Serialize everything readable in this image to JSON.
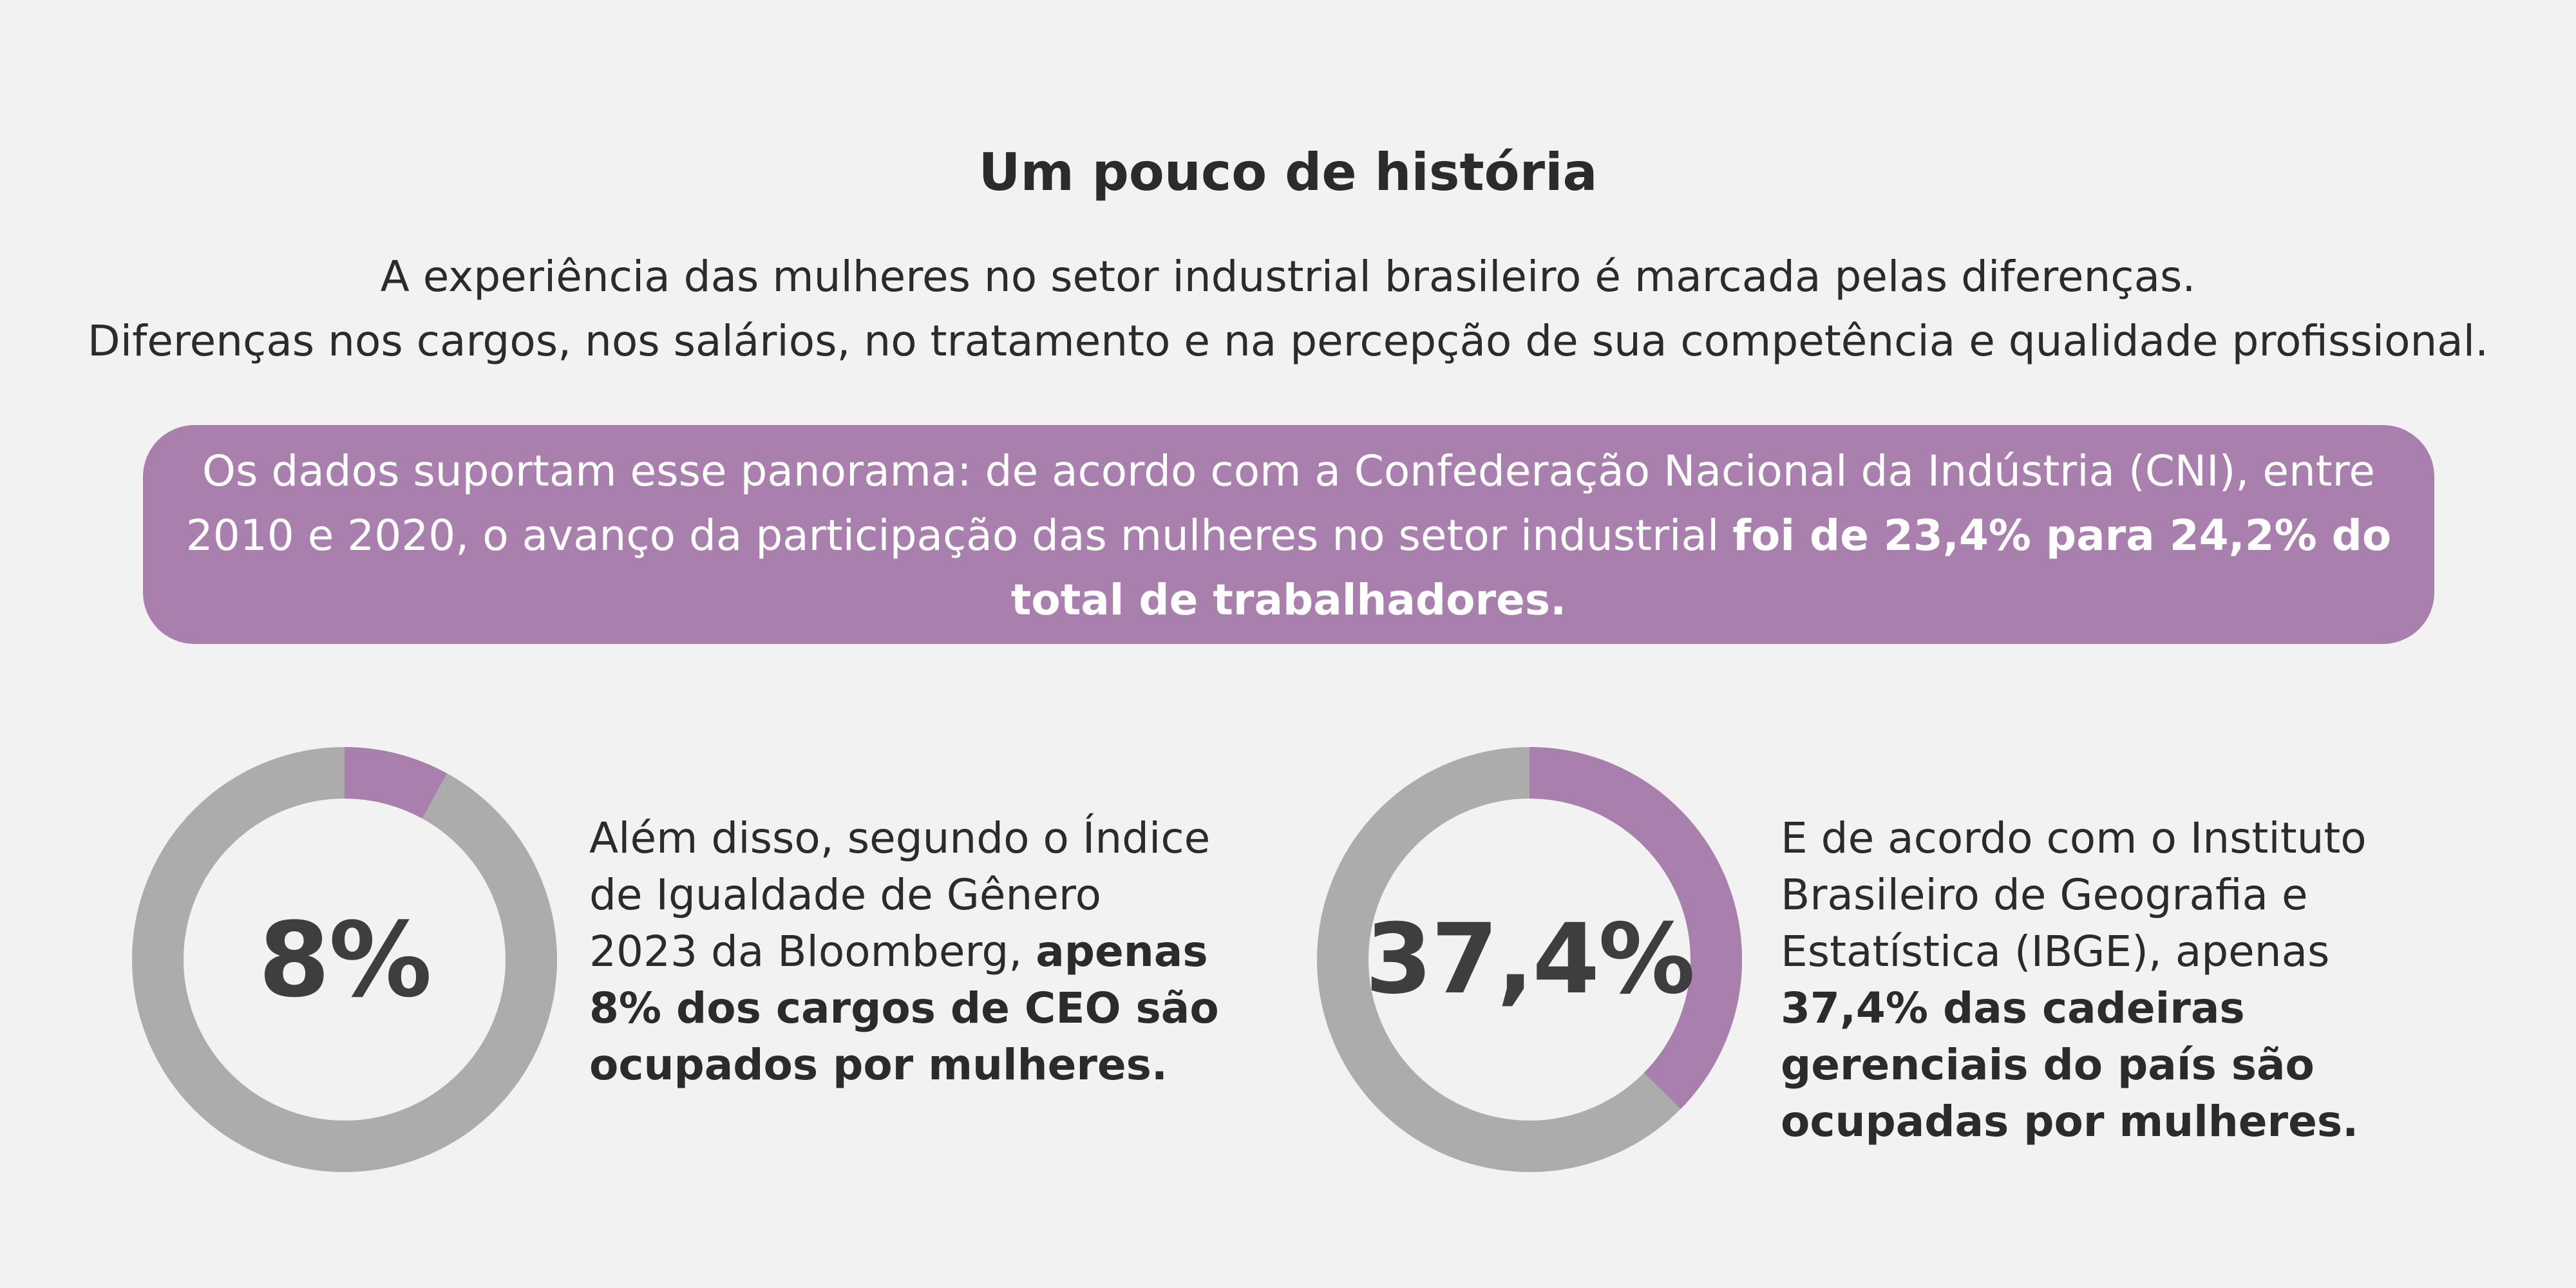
{
  "header": {
    "title": "Um pouco de história",
    "intro_line1": "A experiência das mulheres no setor industrial brasileiro é marcada pelas diferenças.",
    "intro_line2": "Diferenças nos cargos, nos salários, no tratamento e na percepção de sua competência e qualidade profissional."
  },
  "banner": {
    "text": "Os dados suportam esse panorama: de acordo com a Confederação Nacional da Indústria (CNI), entre 2010 e 2020, o avanço da participação das mulheres no setor industrial ",
    "highlight": "foi de 23,4% para 24,2% do total de trabalhadores."
  },
  "stats": [
    {
      "percent_label": "8%",
      "fraction": 0.08,
      "text": "Além disso, segundo o Índice de Igualdade de Gênero 2023 da Bloomberg, ",
      "highlight": "apenas 8% dos cargos de CEO são ocupados por mulheres."
    },
    {
      "percent_label": "37,4%",
      "fraction": 0.374,
      "text": "E de acordo com o Instituto Brasileiro de Geografia e Estatística (IBGE), apenas ",
      "highlight": "37,4% das cadeiras gerenciais do país são ocupadas por mulheres."
    }
  ],
  "colors": {
    "accent": "#a97fad",
    "ring": "#acacac",
    "background": "#f2f2f2",
    "text": "#2b2b2b"
  }
}
